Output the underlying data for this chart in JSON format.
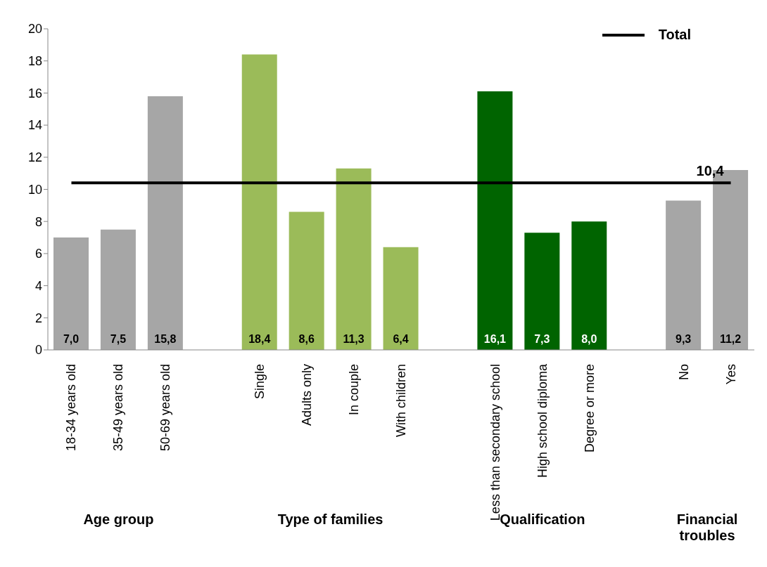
{
  "chart_data": {
    "type": "bar",
    "categories": [
      "18-34 years  old",
      "35-49 years  old",
      "50-69 years old",
      null,
      "Single",
      "Adults only",
      "In couple",
      "With children",
      null,
      "Less  than secondary school",
      "High school diploma",
      "Degree or more",
      null,
      "No",
      "Yes"
    ],
    "series": [
      {
        "colors": [
          "#a6a6a6",
          "#a6a6a6",
          "#a6a6a6",
          null,
          "#9bbb59",
          "#9bbb59",
          "#9bbb59",
          "#9bbb59",
          null,
          "#006400",
          "#006400",
          "#006400",
          null,
          "#a6a6a6",
          "#a6a6a6"
        ],
        "values": [
          7.0,
          7.5,
          15.8,
          null,
          18.4,
          8.6,
          11.3,
          6.4,
          null,
          16.1,
          7.3,
          8.0,
          null,
          9.3,
          11.2
        ],
        "value_labels": [
          "7,0",
          "7,5",
          "15,8",
          null,
          "18,4",
          "8,6",
          "11,3",
          "6,4",
          null,
          "16,1",
          "7,3",
          "8,0",
          null,
          "9,3",
          "11,2"
        ]
      },
      {
        "type": "line",
        "name": "Total",
        "color": "#000000",
        "values": [
          10.4,
          10.4,
          10.4,
          10.4,
          10.4,
          10.4,
          10.4,
          10.4,
          10.4,
          10.4,
          10.4,
          10.4,
          10.4,
          10.4,
          10.4
        ],
        "value_labels": [
          null,
          null,
          null,
          null,
          null,
          null,
          null,
          null,
          null,
          null,
          null,
          null,
          null,
          null,
          "10,4"
        ]
      }
    ],
    "annotations": [
      "Age group",
      "Type of families",
      "Qualification",
      "Financial troubles"
    ],
    "ylim": [
      0,
      20
    ],
    "yticks": [
      0,
      2,
      4,
      6,
      8,
      10,
      12,
      14,
      16,
      18,
      20
    ],
    "grid": false,
    "legend": "top right",
    "marker": "none"
  }
}
